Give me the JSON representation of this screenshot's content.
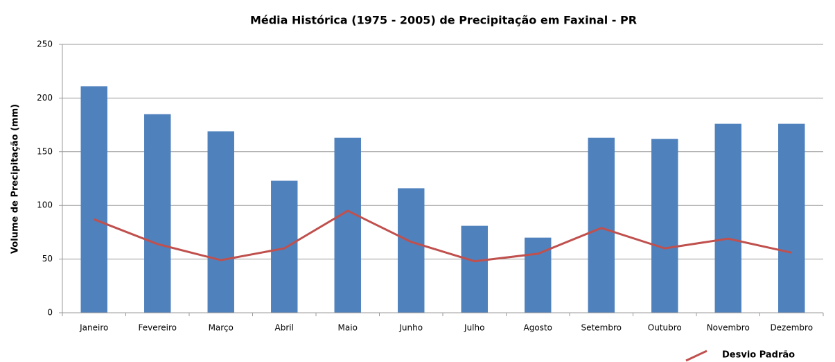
{
  "chart_data": {
    "type": "bar",
    "title": "Média Histórica (1975 - 2005) de Precipitação em Faxinal - PR",
    "y_label": "Volume de Precipitação (mm)",
    "categories": [
      "Janeiro",
      "Fevereiro",
      "Março",
      "Abril",
      "Maio",
      "Junho",
      "Julho",
      "Agosto",
      "Setembro",
      "Outubro",
      "Novembro",
      "Dezembro"
    ],
    "series": [
      {
        "color": "#4f81bd",
        "values": [
          211,
          185,
          169,
          123,
          163,
          116,
          81,
          70,
          163,
          162,
          176,
          176
        ]
      },
      {
        "name": "Desvio Padrão",
        "type": "line",
        "color": "#c0504d",
        "values": [
          87,
          64,
          49,
          60,
          95,
          66,
          48,
          55,
          79,
          60,
          69,
          56
        ]
      }
    ],
    "ylim": [
      0,
      250
    ],
    "yticks": [
      0,
      50,
      100,
      150,
      200,
      250
    ],
    "grid": true,
    "legend": "bottom-right"
  }
}
